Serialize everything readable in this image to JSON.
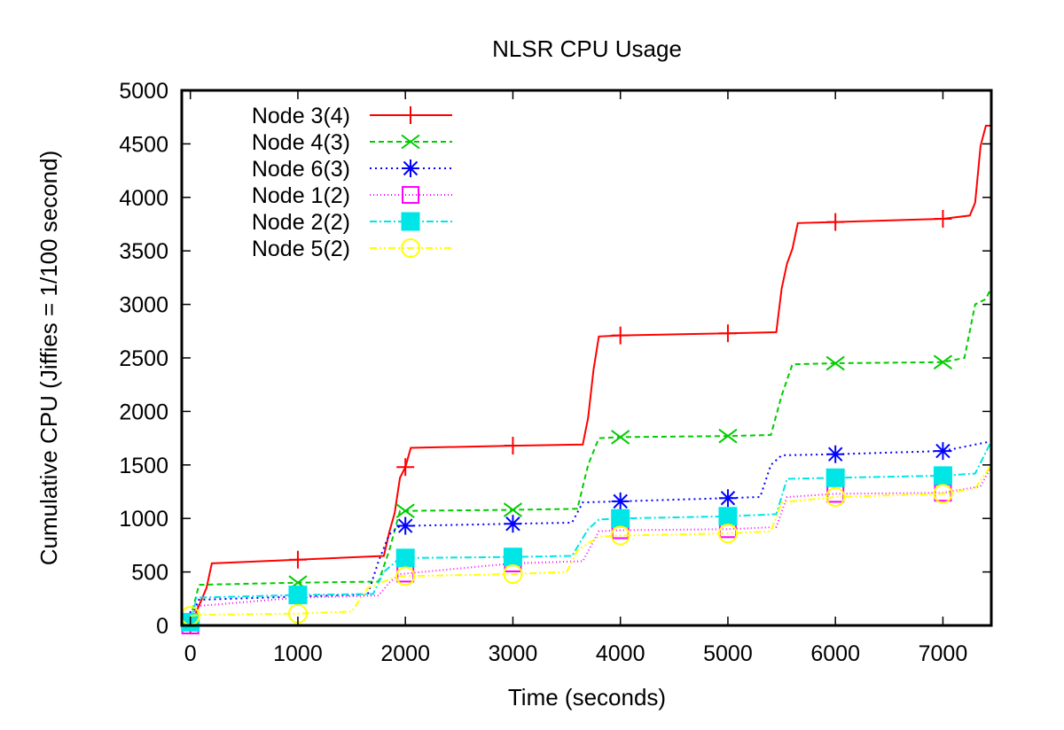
{
  "chart_data": {
    "type": "line",
    "title": "NLSR CPU Usage",
    "xlabel": "Time (seconds)",
    "ylabel": "Cumulative CPU (Jiffies = 1/100 second)",
    "xlim": [
      -80,
      7450
    ],
    "ylim": [
      0,
      5000
    ],
    "xticks": [
      0,
      1000,
      2000,
      3000,
      4000,
      5000,
      6000,
      7000
    ],
    "yticks": [
      0,
      500,
      1000,
      1500,
      2000,
      2500,
      3000,
      3500,
      4000,
      4500,
      5000
    ],
    "grid": false,
    "legend_position": "top-left",
    "series": [
      {
        "name": "Node 3(4)",
        "color": "#ff0000",
        "dash": "solid",
        "marker": "plus",
        "marker_x": [
          0,
          1000,
          2000,
          3000,
          4000,
          5000,
          6000,
          7000
        ],
        "points": [
          [
            0,
            0
          ],
          [
            100,
            230
          ],
          [
            150,
            350
          ],
          [
            200,
            580
          ],
          [
            1000,
            615
          ],
          [
            1800,
            650
          ],
          [
            1850,
            870
          ],
          [
            1900,
            1050
          ],
          [
            1950,
            1380
          ],
          [
            2000,
            1480
          ],
          [
            2050,
            1660
          ],
          [
            3000,
            1680
          ],
          [
            3650,
            1690
          ],
          [
            3700,
            1940
          ],
          [
            3750,
            2390
          ],
          [
            3800,
            2700
          ],
          [
            4000,
            2710
          ],
          [
            5000,
            2730
          ],
          [
            5450,
            2740
          ],
          [
            5500,
            3150
          ],
          [
            5550,
            3380
          ],
          [
            5600,
            3520
          ],
          [
            5650,
            3760
          ],
          [
            6000,
            3770
          ],
          [
            7000,
            3800
          ],
          [
            7250,
            3830
          ],
          [
            7300,
            3950
          ],
          [
            7350,
            4480
          ],
          [
            7400,
            4670
          ],
          [
            7450,
            4670
          ]
        ]
      },
      {
        "name": "Node 4(3)",
        "color": "#00cc00",
        "dash": "6,4",
        "marker": "cross",
        "marker_x": [
          0,
          1000,
          2000,
          3000,
          4000,
          5000,
          6000,
          7000
        ],
        "points": [
          [
            0,
            60
          ],
          [
            80,
            380
          ],
          [
            1000,
            400
          ],
          [
            1750,
            410
          ],
          [
            1850,
            700
          ],
          [
            1950,
            1070
          ],
          [
            3000,
            1080
          ],
          [
            3600,
            1090
          ],
          [
            3700,
            1500
          ],
          [
            3800,
            1750
          ],
          [
            4000,
            1760
          ],
          [
            5000,
            1770
          ],
          [
            5400,
            1780
          ],
          [
            5500,
            2150
          ],
          [
            5600,
            2440
          ],
          [
            6000,
            2450
          ],
          [
            7000,
            2460
          ],
          [
            7200,
            2500
          ],
          [
            7300,
            3000
          ],
          [
            7400,
            3050
          ],
          [
            7450,
            3160
          ]
        ]
      },
      {
        "name": "Node 6(3)",
        "color": "#0000ff",
        "dash": "2,4",
        "marker": "star",
        "marker_x": [
          0,
          1000,
          2000,
          3000,
          4000,
          5000,
          6000,
          7000
        ],
        "points": [
          [
            0,
            50
          ],
          [
            80,
            240
          ],
          [
            1000,
            270
          ],
          [
            1650,
            290
          ],
          [
            1750,
            600
          ],
          [
            1850,
            850
          ],
          [
            1950,
            930
          ],
          [
            3000,
            950
          ],
          [
            3550,
            960
          ],
          [
            3650,
            1150
          ],
          [
            4000,
            1160
          ],
          [
            5000,
            1190
          ],
          [
            5300,
            1200
          ],
          [
            5400,
            1500
          ],
          [
            5500,
            1590
          ],
          [
            6000,
            1600
          ],
          [
            7000,
            1630
          ],
          [
            7450,
            1720
          ]
        ]
      },
      {
        "name": "Node 1(2)",
        "color": "#ff00ff",
        "dash": "1,3",
        "marker": "square-open",
        "marker_x": [
          0,
          2000,
          3000,
          4000,
          5000,
          6000,
          7000
        ],
        "points": [
          [
            0,
            0
          ],
          [
            50,
            180
          ],
          [
            1000,
            260
          ],
          [
            1750,
            280
          ],
          [
            1850,
            400
          ],
          [
            1950,
            480
          ],
          [
            3000,
            580
          ],
          [
            3650,
            600
          ],
          [
            3800,
            880
          ],
          [
            4000,
            890
          ],
          [
            5000,
            900
          ],
          [
            5450,
            920
          ],
          [
            5550,
            1200
          ],
          [
            6000,
            1230
          ],
          [
            7000,
            1240
          ],
          [
            7350,
            1300
          ],
          [
            7450,
            1490
          ]
        ]
      },
      {
        "name": "Node 2(2)",
        "color": "#00e5e5",
        "dash": "8,3,2,3",
        "marker": "square-filled",
        "marker_x": [
          0,
          1000,
          2000,
          3000,
          4000,
          5000,
          6000,
          7000
        ],
        "points": [
          [
            0,
            30
          ],
          [
            60,
            260
          ],
          [
            1000,
            285
          ],
          [
            1700,
            295
          ],
          [
            1800,
            500
          ],
          [
            1950,
            630
          ],
          [
            3000,
            640
          ],
          [
            3550,
            650
          ],
          [
            3700,
            900
          ],
          [
            3800,
            990
          ],
          [
            4000,
            1000
          ],
          [
            5000,
            1020
          ],
          [
            5450,
            1040
          ],
          [
            5550,
            1370
          ],
          [
            6000,
            1380
          ],
          [
            7000,
            1400
          ],
          [
            7300,
            1420
          ],
          [
            7450,
            1720
          ]
        ]
      },
      {
        "name": "Node 5(2)",
        "color": "#ffff00",
        "dash": "8,3,2,3,2,3",
        "marker": "circle-open",
        "marker_x": [
          0,
          1000,
          2000,
          3000,
          4000,
          5000,
          6000,
          7000
        ],
        "points": [
          [
            0,
            90
          ],
          [
            100,
            100
          ],
          [
            1000,
            110
          ],
          [
            1500,
            130
          ],
          [
            1650,
            350
          ],
          [
            1850,
            430
          ],
          [
            1950,
            460
          ],
          [
            3000,
            480
          ],
          [
            3500,
            500
          ],
          [
            3600,
            700
          ],
          [
            3800,
            830
          ],
          [
            4000,
            840
          ],
          [
            5000,
            860
          ],
          [
            5400,
            880
          ],
          [
            5500,
            1150
          ],
          [
            6000,
            1200
          ],
          [
            7000,
            1230
          ],
          [
            7300,
            1280
          ],
          [
            7450,
            1500
          ]
        ]
      }
    ]
  }
}
